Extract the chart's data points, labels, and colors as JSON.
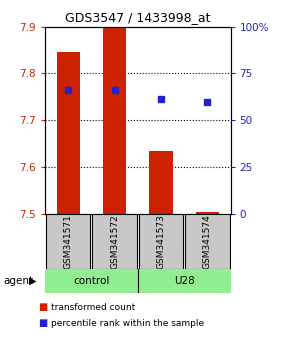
{
  "title": "GDS3547 / 1433998_at",
  "samples": [
    "GSM341571",
    "GSM341572",
    "GSM341573",
    "GSM341574"
  ],
  "groups": [
    "control",
    "control",
    "U28",
    "U28"
  ],
  "bar_bottom": 7.5,
  "bar_values": [
    7.845,
    7.9,
    7.635,
    7.505
  ],
  "percentile_values": [
    7.765,
    7.765,
    7.745,
    7.74
  ],
  "ylim_left": [
    7.5,
    7.9
  ],
  "ylim_right": [
    0,
    100
  ],
  "yticks_left": [
    7.5,
    7.6,
    7.7,
    7.8,
    7.9
  ],
  "yticks_right": [
    0,
    25,
    50,
    75,
    100
  ],
  "ytick_labels_right": [
    "0",
    "25",
    "50",
    "75",
    "100%"
  ],
  "bar_color": "#CC2200",
  "dot_color": "#2222CC",
  "legend_entries": [
    "transformed count",
    "percentile rank within the sample"
  ],
  "bar_width": 0.5,
  "grid_levels": [
    7.6,
    7.7,
    7.8
  ],
  "light_green": "#90EE90",
  "light_gray": "#C8C8C8"
}
